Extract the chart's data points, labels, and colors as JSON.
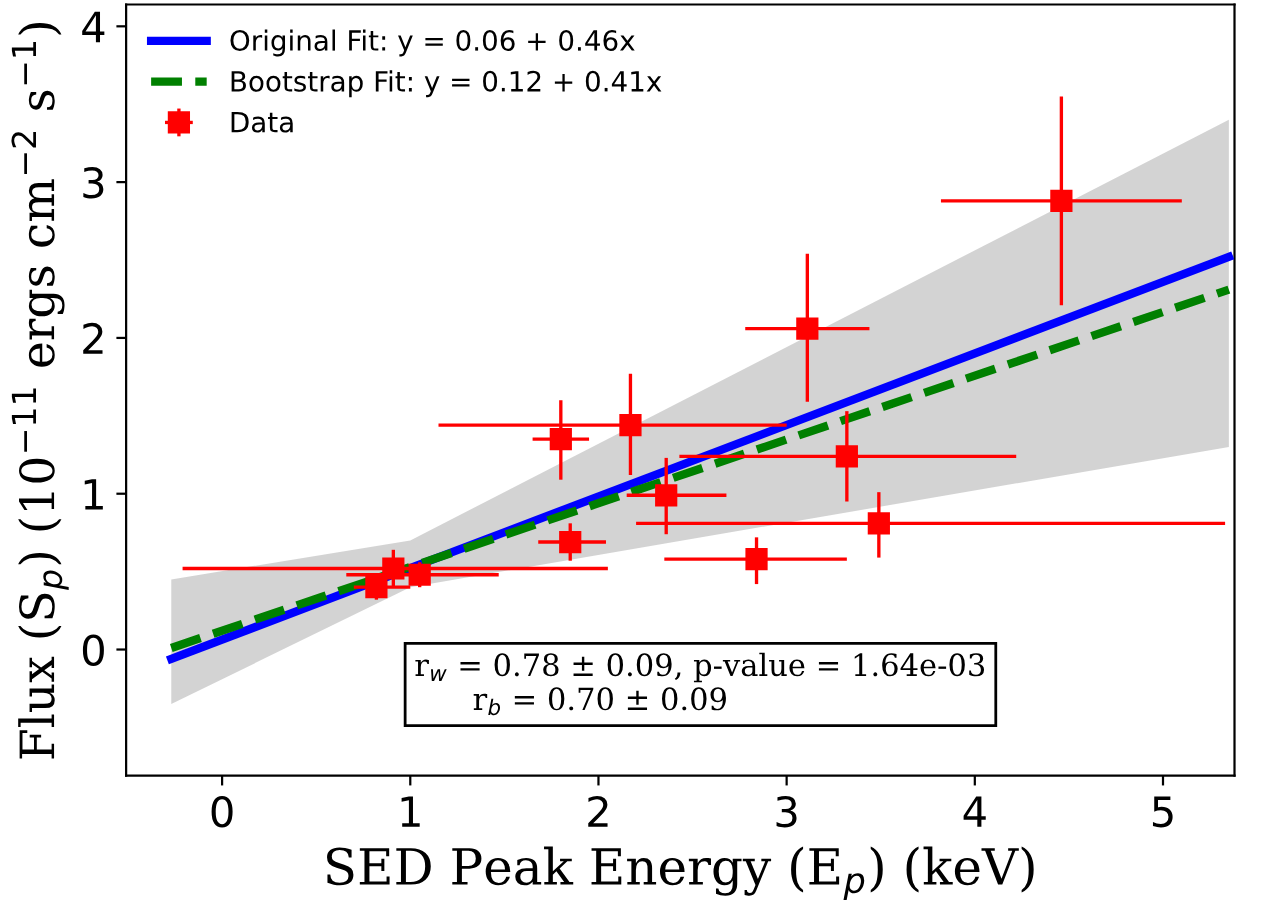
{
  "chart_data": {
    "type": "scatter",
    "xlabel": "SED Peak Energy (E$_{p}$) (keV)",
    "ylabel": "Flux (S$_{p}$) (10$^{−11}$ ergs cm$^{−2}$ s$^{−1}$)",
    "xlim": [
      -0.51,
      5.38
    ],
    "ylim": [
      -0.81,
      4.14
    ],
    "xticks": [
      0,
      1,
      2,
      3,
      4,
      5
    ],
    "yticks": [
      0,
      1,
      2,
      3,
      4
    ],
    "grid": false,
    "legend": "top left",
    "annotations": [
      "r$_{w}$ = 0.78 ± 0.09, p-value = 1.64e-03\n      r$_{b}$ = 0.70 ± 0.09"
    ],
    "series": [
      {
        "name": "Original Fit: y = 0.06 + 0.46x",
        "type": "line",
        "color": "#0000ff",
        "line_style": "solid",
        "marker": "none",
        "x": [
          -0.27,
          5.35
        ],
        "values": [
          -0.06,
          2.52
        ]
      },
      {
        "name": "Bootstrap Fit: y = 0.12 + 0.41x",
        "type": "line",
        "color": "#008000",
        "line_style": "dashed",
        "marker": "none",
        "x": [
          -0.27,
          1,
          5.35
        ],
        "values": [
          0.01,
          0.53,
          2.31
        ],
        "lower": [
          -0.35,
          0.4,
          1.3
        ],
        "upper": [
          0.45,
          0.7,
          3.4
        ]
      },
      {
        "name": "Data",
        "color": "#ff0000",
        "marker": "square",
        "x": [
          0.82,
          0.91,
          1.05,
          1.85,
          1.8,
          2.17,
          2.36,
          2.84,
          3.11,
          3.32,
          3.49,
          4.46
        ],
        "values": [
          0.4,
          0.52,
          0.48,
          0.69,
          1.35,
          1.44,
          0.99,
          0.58,
          2.06,
          1.24,
          0.81,
          2.88
        ],
        "errors": [
          [
            0.32,
            0.48
          ],
          [
            0.4,
            0.64
          ],
          [
            0.4,
            0.56
          ],
          [
            0.57,
            0.81
          ],
          [
            1.09,
            1.6
          ],
          [
            1.12,
            1.77
          ],
          [
            0.74,
            1.23
          ],
          [
            0.42,
            0.72
          ],
          [
            1.59,
            2.54
          ],
          [
            0.95,
            1.53
          ],
          [
            0.59,
            1.01
          ],
          [
            2.21,
            3.55
          ]
        ],
        "xerrors": [
          [
            0.7,
            1.0
          ],
          [
            -0.21,
            2.05
          ],
          [
            0.66,
            1.47
          ],
          [
            1.68,
            2.04
          ],
          [
            1.65,
            1.95
          ],
          [
            1.15,
            3.0
          ],
          [
            2.15,
            2.68
          ],
          [
            2.35,
            3.32
          ],
          [
            2.78,
            3.44
          ],
          [
            2.43,
            4.22
          ],
          [
            2.2,
            5.33
          ],
          [
            3.82,
            5.1
          ]
        ]
      }
    ]
  }
}
